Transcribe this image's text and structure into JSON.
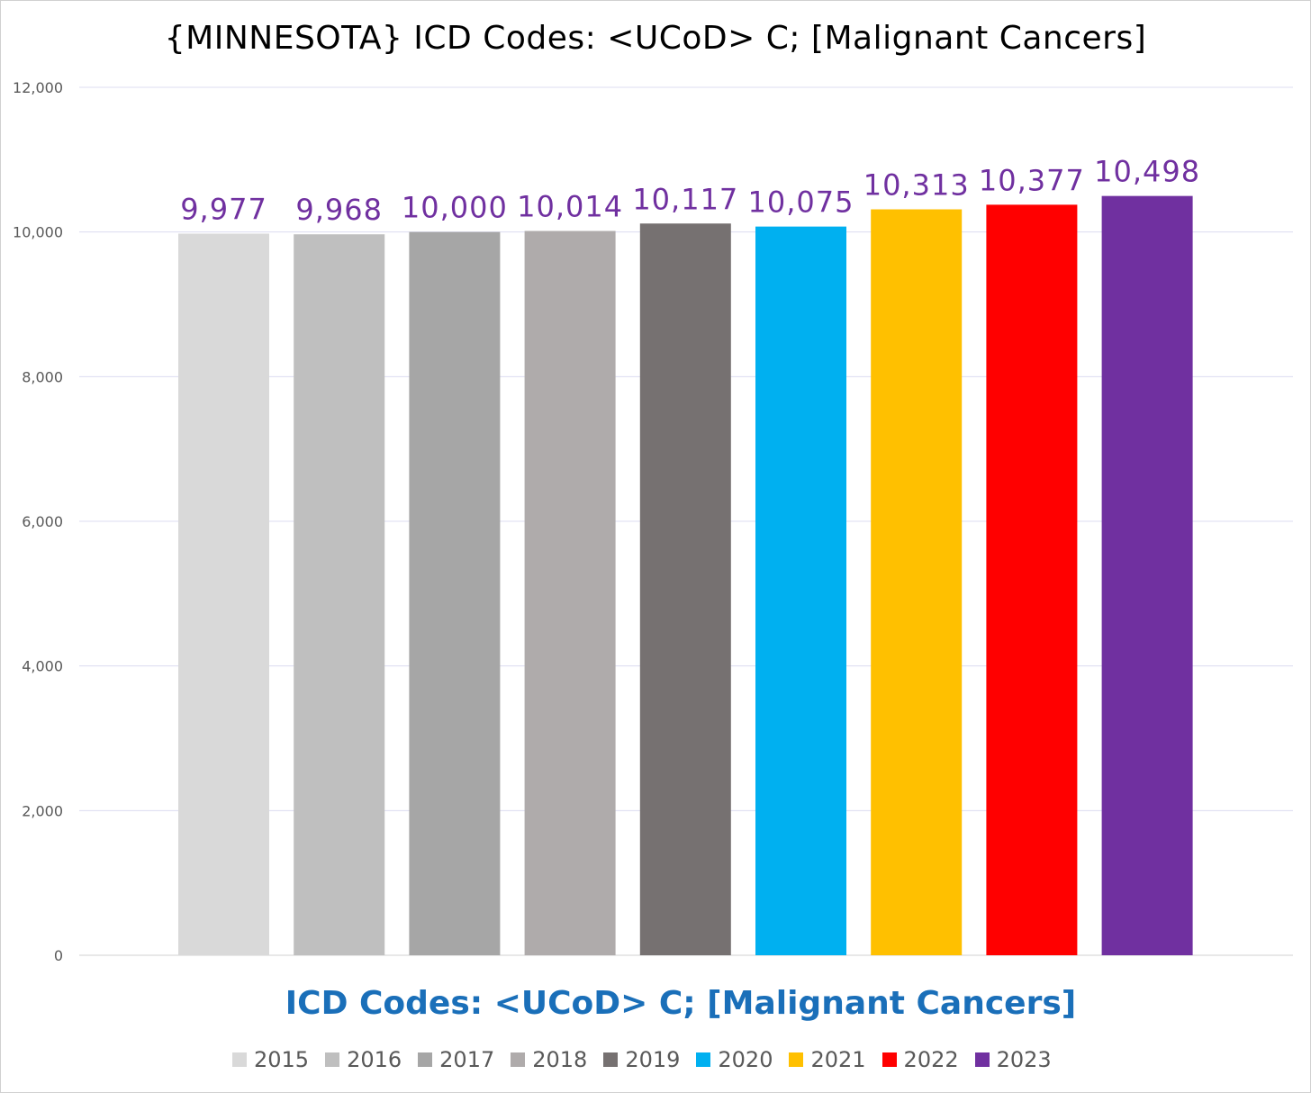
{
  "chart_data": {
    "type": "bar",
    "title": "{MINNESOTA}  ICD Codes: <UCoD> C;  [Malignant Cancers]",
    "xlabel": "ICD Codes: <UCoD> C;  [Malignant Cancers]",
    "ylabel": "",
    "ylim": [
      0,
      12000
    ],
    "yticks": [
      "0",
      "2,000",
      "4,000",
      "6,000",
      "8,000",
      "10,000",
      "12,000"
    ],
    "grid": true,
    "legend_position": "bottom",
    "series": [
      {
        "name": "2015",
        "value": 9977,
        "label": "9,977",
        "color": "#d9d9d9"
      },
      {
        "name": "2016",
        "value": 9968,
        "label": "9,968",
        "color": "#bfbfbf"
      },
      {
        "name": "2017",
        "value": 10000,
        "label": "10,000",
        "color": "#a6a6a6"
      },
      {
        "name": "2018",
        "value": 10014,
        "label": "10,014",
        "color": "#afabab"
      },
      {
        "name": "2019",
        "value": 10117,
        "label": "10,117",
        "color": "#767171"
      },
      {
        "name": "2020",
        "value": 10075,
        "label": "10,075",
        "color": "#00b0f0"
      },
      {
        "name": "2021",
        "value": 10313,
        "label": "10,313",
        "color": "#ffc000"
      },
      {
        "name": "2022",
        "value": 10377,
        "label": "10,377",
        "color": "#ff0000"
      },
      {
        "name": "2023",
        "value": 10498,
        "label": "10,498",
        "color": "#7030a0"
      }
    ],
    "data_label_color": "#7030a0"
  }
}
